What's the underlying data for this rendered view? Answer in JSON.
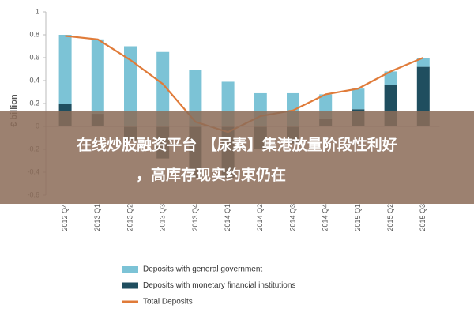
{
  "chart_data": {
    "type": "bar",
    "y_label": "€ billion",
    "categories": [
      "2012 Q4",
      "2013 Q1",
      "2013 Q2",
      "2013 Q3",
      "2013 Q4",
      "2014 Q1",
      "2014 Q2",
      "2014 Q3",
      "2014 Q4",
      "2015 Q1",
      "2015 Q2",
      "2015 Q3"
    ],
    "series": [
      {
        "name": "Deposits with general government",
        "type": "bar",
        "color": "#7cc3d6",
        "values": [
          0.6,
          0.65,
          0.7,
          0.65,
          0.49,
          0.39,
          0.29,
          0.29,
          0.21,
          0.18,
          0.12,
          0.08
        ]
      },
      {
        "name": "Deposits with monetary financial institutions",
        "type": "bar",
        "color": "#1f4e5f",
        "values": [
          0.2,
          0.11,
          -0.12,
          -0.28,
          -0.45,
          -0.45,
          -0.2,
          -0.15,
          0.07,
          0.15,
          0.36,
          0.52
        ]
      },
      {
        "name": "Total Deposits",
        "type": "line",
        "color": "#e07b39",
        "values": [
          0.79,
          0.76,
          0.58,
          0.37,
          0.04,
          -0.05,
          0.09,
          0.14,
          0.28,
          0.33,
          0.48,
          0.6
        ]
      }
    ],
    "ylim": [
      -0.6,
      1
    ],
    "yticks": [
      -0.6,
      -0.4,
      -0.2,
      0,
      0.2,
      0.4,
      0.6,
      0.8,
      1
    ]
  },
  "overlay": {
    "lines": [
      "在线炒股融资平台 【尿素】集港放量阶段性利好",
      "，高库存现实约束仍在"
    ]
  }
}
